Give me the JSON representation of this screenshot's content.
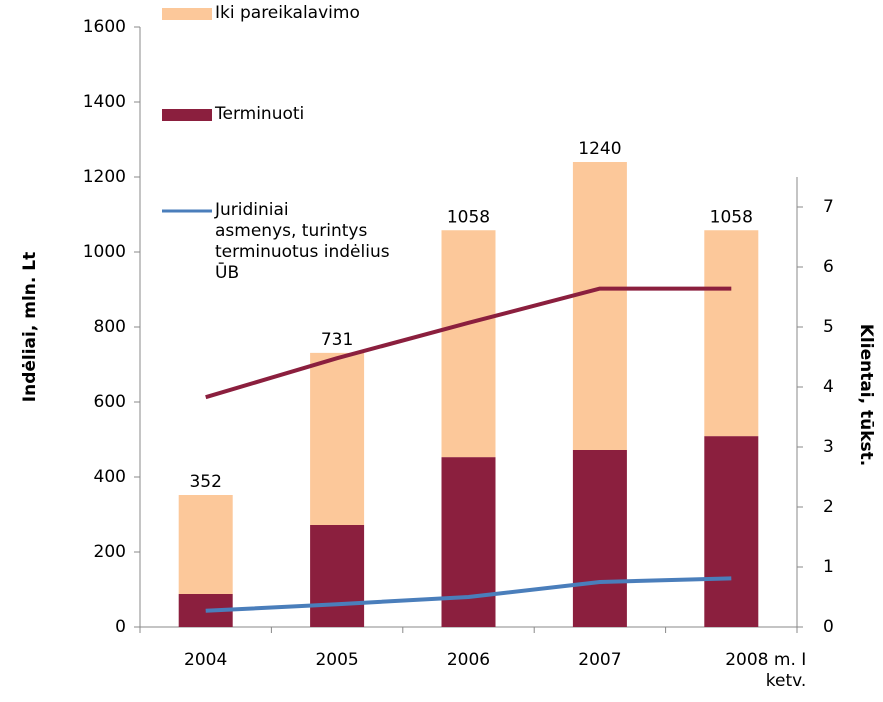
{
  "chart_data": {
    "type": "bar",
    "categories": [
      "2004",
      "2005",
      "2006",
      "2007",
      "2008 m. I\nketv."
    ],
    "series": [
      {
        "name": "Terminuoti",
        "color": "#8b1f3e",
        "values": [
          88,
          272,
          453,
          472,
          509
        ]
      },
      {
        "name": "Iki pareikalavimo",
        "color": "#fcc89a",
        "values": [
          264,
          459,
          605,
          768,
          549
        ]
      },
      {
        "type": "line",
        "axis": "y2",
        "color": "#8b1f3e",
        "values": [
          3.83,
          4.48,
          5.07,
          5.64,
          5.64
        ]
      },
      {
        "type": "line",
        "axis": "y2",
        "name": "Juridiniai\nasmenys, turintys\nterminuotus indėlius\nŪB",
        "color": "#4a7ebb",
        "values": [
          0.27,
          0.38,
          0.5,
          0.75,
          0.81
        ]
      }
    ],
    "totals": [
      352,
      731,
      1058,
      1240,
      1058
    ],
    "ylabel": "Indėliai, mln. Lt",
    "y2label": "Klientai, tūkst.",
    "ylim": [
      0,
      1600
    ],
    "yticks": [
      0,
      200,
      400,
      600,
      800,
      1000,
      1200,
      1400,
      1600
    ],
    "y2lim": [
      0,
      10
    ],
    "y2ticks": [
      0,
      1,
      2,
      3,
      4,
      5,
      6,
      7
    ],
    "stacked": true
  }
}
